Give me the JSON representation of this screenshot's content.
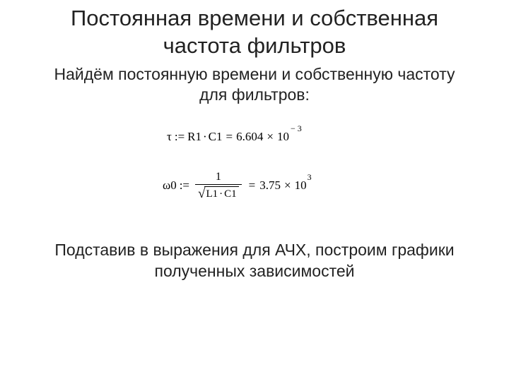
{
  "title": "Постоянная времени и собственная частота фильтров",
  "subtitle": "Найдём постоянную времени и собственную частоту для фильтров:",
  "eq1": {
    "lhs_symbol": "τ",
    "assign": ":=",
    "rhs_expr_a": "R1",
    "rhs_dot": "·",
    "rhs_expr_b": "C1",
    "equals": "=",
    "mantissa": "6.604",
    "times": "×",
    "ten": "10",
    "exp_sign": "−",
    "exp_val": "3"
  },
  "eq2": {
    "lhs_symbol": "ω0",
    "assign": ":=",
    "num": "1",
    "rad_a": "L1",
    "rad_dot": "·",
    "rad_b": "C1",
    "equals": "=",
    "mantissa": "3.75",
    "times": "×",
    "ten": "10",
    "exp_val": "3"
  },
  "conclusion": "Подставив в выражения для АЧХ, построим графики полученных зависимостей",
  "style": {
    "background_color": "#ffffff",
    "text_color": "#222222",
    "eq_text_color": "#000000",
    "title_fontsize": 31,
    "body_fontsize": 23,
    "eq_fontsize": 17
  }
}
